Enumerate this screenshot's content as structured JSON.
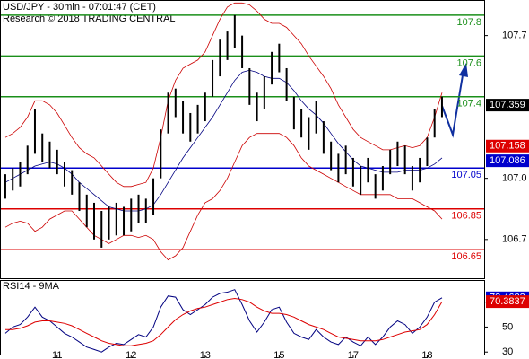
{
  "header": {
    "title": "USD/JPY - 30min - 07:01:47 (CET)",
    "subtitle": "Research © 2018 TRADING CENTRAL"
  },
  "chart_data": [
    {
      "type": "ohlc",
      "xlim": [
        -0.6,
        64.7
      ],
      "ylim": [
        106.51,
        107.87
      ],
      "yticks": [
        107.7,
        {
          "value": 107,
          "label": "107.0"
        },
        106.7
      ],
      "bar_color": "#000000",
      "high": [
        107.02,
        107.05,
        107.08,
        107.16,
        107.34,
        107.22,
        107.18,
        107.14,
        107.08,
        107.04,
        106.98,
        106.92,
        106.88,
        106.84,
        106.86,
        106.88,
        106.86,
        106.9,
        106.92,
        106.9,
        107.0,
        107.24,
        107.42,
        107.44,
        107.38,
        107.32,
        107.36,
        107.42,
        107.58,
        107.68,
        107.72,
        107.8,
        107.7,
        107.54,
        107.42,
        107.5,
        107.62,
        107.66,
        107.54,
        107.4,
        107.34,
        107.3,
        107.38,
        107.28,
        107.18,
        107.12,
        107.16,
        107.1,
        107.06,
        107.1,
        107.02,
        107.06,
        107.14,
        107.18,
        107.16,
        107.06,
        107.1,
        107.2,
        107.34,
        107.4
      ],
      "low": [
        106.9,
        106.94,
        106.96,
        107.02,
        107.12,
        107.08,
        107.05,
        107.02,
        106.96,
        106.92,
        106.84,
        106.76,
        106.7,
        106.66,
        106.7,
        106.72,
        106.72,
        106.74,
        106.78,
        106.78,
        106.82,
        107.0,
        107.22,
        107.3,
        107.22,
        107.18,
        107.22,
        107.28,
        107.4,
        107.5,
        107.58,
        107.64,
        107.54,
        107.36,
        107.28,
        107.34,
        107.46,
        107.52,
        107.38,
        107.24,
        107.2,
        107.14,
        107.22,
        107.12,
        107.04,
        106.98,
        107.02,
        106.96,
        106.92,
        106.98,
        106.9,
        106.94,
        107.02,
        107.06,
        107.02,
        106.94,
        106.98,
        107.06,
        107.2,
        107.3
      ],
      "bands": [
        {
          "color": "#cc0000",
          "values": [
            107.2,
            107.22,
            107.25,
            107.3,
            107.38,
            107.38,
            107.36,
            107.32,
            107.26,
            107.2,
            107.15,
            107.12,
            107.1,
            107.06,
            107.02,
            106.98,
            106.96,
            106.96,
            106.97,
            106.98,
            107.05,
            107.2,
            107.38,
            107.48,
            107.54,
            107.56,
            107.58,
            107.62,
            107.7,
            107.78,
            107.84,
            107.86,
            107.86,
            107.85,
            107.82,
            107.78,
            107.76,
            107.76,
            107.74,
            107.7,
            107.66,
            107.6,
            107.55,
            107.5,
            107.44,
            107.36,
            107.3,
            107.24,
            107.2,
            107.18,
            107.16,
            107.14,
            107.14,
            107.15,
            107.16,
            107.15,
            107.16,
            107.2,
            107.3,
            107.42
          ]
        },
        {
          "color": "#000080",
          "values": [
            106.98,
            107.0,
            107.02,
            107.04,
            107.06,
            107.07,
            107.08,
            107.07,
            107.05,
            107.02,
            106.98,
            106.95,
            106.92,
            106.89,
            106.86,
            106.85,
            106.84,
            106.84,
            106.84,
            106.85,
            106.87,
            106.92,
            106.98,
            107.04,
            107.1,
            107.15,
            107.2,
            107.25,
            107.3,
            107.36,
            107.42,
            107.48,
            107.52,
            107.53,
            107.52,
            107.5,
            107.49,
            107.49,
            107.47,
            107.43,
            107.38,
            107.34,
            107.31,
            107.27,
            107.22,
            107.17,
            107.13,
            107.09,
            107.06,
            107.05,
            107.04,
            107.03,
            107.03,
            107.03,
            107.04,
            107.04,
            107.04,
            107.05,
            107.07,
            107.1
          ]
        },
        {
          "color": "#cc0000",
          "values": [
            106.76,
            106.78,
            106.79,
            106.78,
            106.74,
            106.76,
            106.8,
            106.82,
            106.84,
            106.84,
            106.8,
            106.76,
            106.72,
            106.7,
            106.68,
            106.7,
            106.72,
            106.72,
            106.71,
            106.72,
            106.7,
            106.64,
            106.6,
            106.62,
            106.66,
            106.74,
            106.82,
            106.88,
            106.9,
            106.94,
            107.0,
            107.08,
            107.16,
            107.2,
            107.22,
            107.22,
            107.22,
            107.22,
            107.2,
            107.16,
            107.1,
            107.06,
            107.04,
            107.02,
            107.0,
            106.98,
            106.96,
            106.94,
            106.92,
            106.92,
            106.92,
            106.92,
            106.92,
            106.9,
            106.9,
            106.9,
            106.88,
            106.86,
            106.84,
            106.8
          ]
        }
      ],
      "levels": [
        {
          "value": 107.8,
          "color": "#1a8f1a"
        },
        {
          "value": 107.6,
          "color": "#1a8f1a"
        },
        {
          "value": 107.4,
          "color": "#1a8f1a"
        },
        {
          "value": 107.05,
          "color": "#0000cc"
        },
        {
          "value": 106.85,
          "color": "#dd0000"
        },
        {
          "value": 106.65,
          "color": "#dd0000"
        }
      ],
      "markers": [
        {
          "value": 107.359,
          "color": "#000000"
        },
        {
          "value": 107.158,
          "color": "#dd0000"
        },
        {
          "value": 107.086,
          "color": "#0000cc"
        }
      ]
    },
    {
      "type": "line",
      "title": "RSI14 - 9MA",
      "xlim": [
        -0.6,
        64.7
      ],
      "ylim": [
        28,
        87
      ],
      "xticks": [
        {
          "value": 7,
          "label": "11"
        },
        {
          "value": 17,
          "label": "12"
        },
        {
          "value": 27,
          "label": "13"
        },
        {
          "value": 37,
          "label": "15"
        },
        {
          "value": 47,
          "label": "17"
        },
        {
          "value": 57,
          "label": "18"
        }
      ],
      "yticks": [
        70,
        50,
        30
      ],
      "series": [
        {
          "color": "#000080",
          "values": [
            45,
            50,
            52,
            58,
            66,
            58,
            55,
            50,
            45,
            42,
            38,
            34,
            32,
            30,
            34,
            37,
            36,
            40,
            44,
            42,
            50,
            66,
            75,
            74,
            64,
            60,
            64,
            68,
            74,
            77,
            78,
            80,
            68,
            55,
            46,
            54,
            64,
            66,
            54,
            45,
            42,
            40,
            48,
            42,
            38,
            36,
            42,
            38,
            35,
            42,
            36,
            42,
            50,
            55,
            52,
            45,
            50,
            58,
            70,
            73.4683
          ]
        },
        {
          "color": "#dd0000",
          "values": [
            48,
            48,
            49,
            51,
            54,
            55,
            55,
            54,
            53,
            51,
            48,
            45,
            42,
            39,
            37,
            36,
            35,
            35,
            36,
            37,
            39,
            44,
            50,
            56,
            60,
            63,
            65,
            66,
            68,
            70,
            72,
            73,
            72,
            70,
            66,
            63,
            61,
            61,
            60,
            58,
            55,
            52,
            50,
            48,
            45,
            42,
            41,
            40,
            39,
            39,
            39,
            40,
            42,
            44,
            46,
            47,
            48,
            52,
            60,
            70.3837
          ]
        }
      ],
      "markers": [
        {
          "value": 73.4683,
          "color": "#0000cc"
        },
        {
          "value": 70.3837,
          "color": "#dd0000"
        }
      ]
    }
  ]
}
